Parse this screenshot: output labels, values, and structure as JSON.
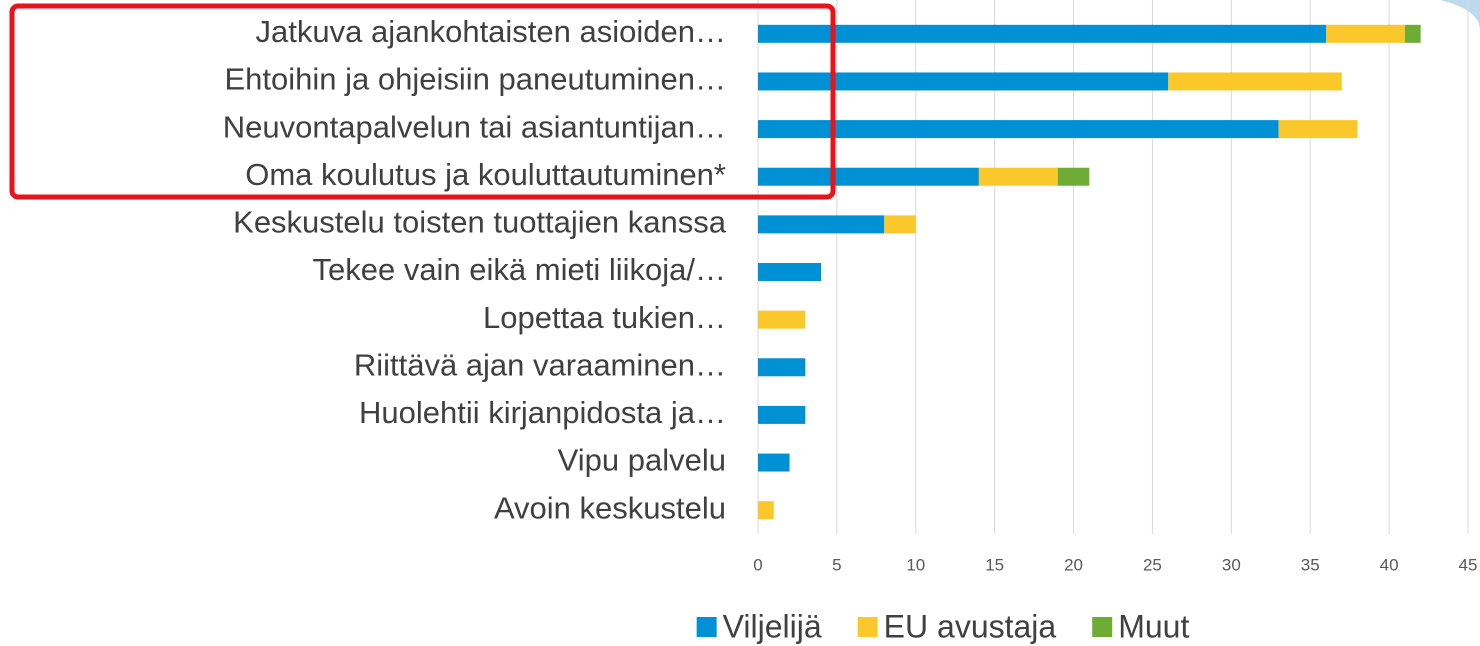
{
  "chart_data": {
    "type": "stacked_bar_horizontal",
    "categories": [
      "Jatkuva ajankohtaisten asioiden…",
      "Ehtoihin ja ohjeisiin paneutuminen…",
      "Neuvontapalvelun tai asiantuntijan…",
      "Oma koulutus ja kouluttautuminen*",
      "Keskustelu toisten tuottajien kanssa",
      "Tekee vain eikä mieti liikoja/…",
      "Lopettaa tukien…",
      "Riittävä ajan varaaminen…",
      "Huolehtii kirjanpidosta ja…",
      "Vipu palvelu",
      "Avoin keskustelu"
    ],
    "series": [
      {
        "name": "Viljelijä",
        "color": "#0091d5",
        "values": [
          36,
          26,
          33,
          14,
          8,
          4,
          0,
          3,
          3,
          2,
          0
        ]
      },
      {
        "name": "EU avustaja",
        "color": "#fbc82b",
        "values": [
          5,
          11,
          5,
          5,
          2,
          0,
          3,
          0,
          0,
          0,
          1
        ]
      },
      {
        "name": "Muut",
        "color": "#6fac35",
        "values": [
          1,
          0,
          0,
          2,
          0,
          0,
          0,
          0,
          0,
          0,
          0
        ]
      }
    ],
    "xlim": [
      0,
      45
    ],
    "xticks": [
      0,
      5,
      10,
      15,
      20,
      25,
      30,
      35,
      40,
      45
    ],
    "grid": true,
    "legend": "bottom"
  }
}
